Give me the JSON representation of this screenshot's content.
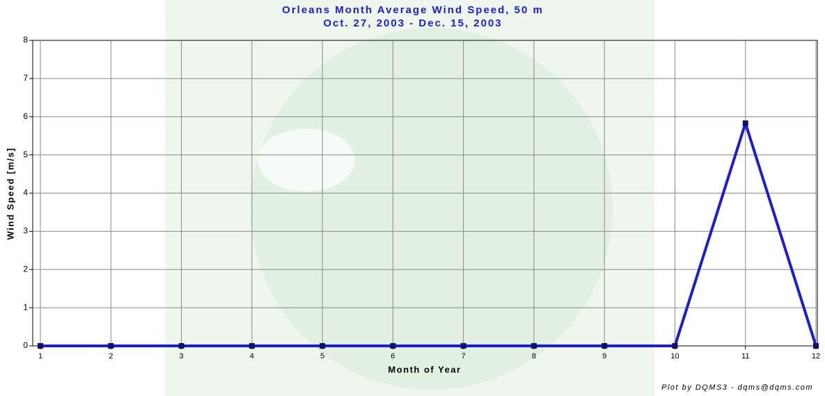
{
  "chart_data": {
    "type": "line",
    "title": "Orleans Month Average Wind Speed, 50 m",
    "subtitle": "Oct. 27, 2003 - Dec. 15, 2003",
    "x_label": "Month of Year",
    "y_label": "Wind Speed [m/s]",
    "annotation": "Plot by DQMS3 - dqms@dqms.com",
    "x": [
      1,
      2,
      3,
      4,
      5,
      6,
      7,
      8,
      9,
      10,
      11,
      12
    ],
    "series": [
      {
        "name": "Wind Speed",
        "color": "#1a1ae0",
        "values": [
          0,
          0,
          0,
          0,
          0,
          0,
          0,
          0,
          0,
          0,
          5.83,
          0
        ]
      }
    ],
    "xlim": [
      1,
      12
    ],
    "xticks": [
      1,
      2,
      3,
      4,
      5,
      6,
      7,
      8,
      9,
      10,
      11,
      12
    ],
    "ylim": [
      0,
      8
    ],
    "yticks": [
      0,
      1,
      2,
      3,
      4,
      5,
      6,
      7,
      8
    ],
    "grid": true
  }
}
